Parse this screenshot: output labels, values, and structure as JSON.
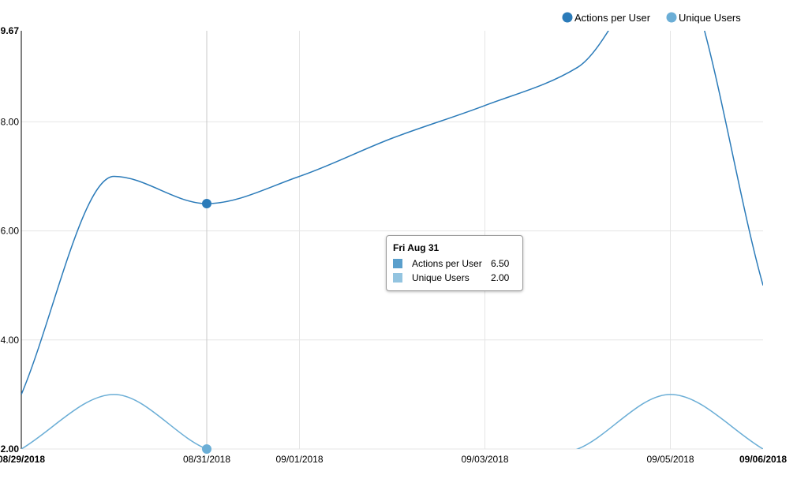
{
  "legend": [
    {
      "name": "Actions per User",
      "color": "#2b7bb9"
    },
    {
      "name": "Unique Users",
      "color": "#6baed6"
    }
  ],
  "tooltip": {
    "title": "Fri Aug 31",
    "rows": [
      {
        "name": "Actions per User",
        "value": "6.50",
        "color": "#5a9fcc"
      },
      {
        "name": "Unique Users",
        "value": "2.00",
        "color": "#93c4e0"
      }
    ]
  },
  "chart_data": {
    "type": "line",
    "ylim": [
      2.0,
      9.67
    ],
    "yticks": [
      {
        "value": 2.0,
        "label": "2.00",
        "edge": true
      },
      {
        "value": 4.0,
        "label": "4.00",
        "edge": false
      },
      {
        "value": 6.0,
        "label": "6.00",
        "edge": false
      },
      {
        "value": 8.0,
        "label": "8.00",
        "edge": false
      },
      {
        "value": 9.67,
        "label": "9.67",
        "edge": true
      }
    ],
    "xlim": [
      "2018-08-29",
      "2018-09-06"
    ],
    "xticks": [
      {
        "date": "2018-08-29",
        "label": "08/29/2018",
        "edge": true
      },
      {
        "date": "2018-08-31",
        "label": "08/31/2018",
        "edge": false
      },
      {
        "date": "2018-09-01",
        "label": "09/01/2018",
        "edge": false
      },
      {
        "date": "2018-09-03",
        "label": "09/03/2018",
        "edge": false
      },
      {
        "date": "2018-09-05",
        "label": "09/05/2018",
        "edge": false
      },
      {
        "date": "2018-09-06",
        "label": "09/06/2018",
        "edge": true
      }
    ],
    "grid": true,
    "legend_position": "top-right",
    "hover_date": "2018-08-31",
    "series": [
      {
        "name": "Actions per User",
        "color": "#2b7bb9",
        "x": [
          "2018-08-29",
          "2018-08-30",
          "2018-08-31",
          "2018-09-01",
          "2018-09-02",
          "2018-09-03",
          "2018-09-04",
          "2018-09-05",
          "2018-09-06"
        ],
        "values": [
          3.0,
          7.0,
          6.5,
          7.0,
          7.7,
          8.3,
          9.0,
          11.0,
          5.0
        ]
      },
      {
        "name": "Unique Users",
        "color": "#6baed6",
        "x": [
          "2018-08-29",
          "2018-08-30",
          "2018-08-31",
          "2018-09-01",
          "2018-09-02",
          "2018-09-03",
          "2018-09-04",
          "2018-09-05",
          "2018-09-06"
        ],
        "values": [
          2.0,
          3.0,
          2.0,
          1.5,
          1.3,
          1.5,
          2.0,
          3.0,
          2.0
        ]
      }
    ]
  }
}
